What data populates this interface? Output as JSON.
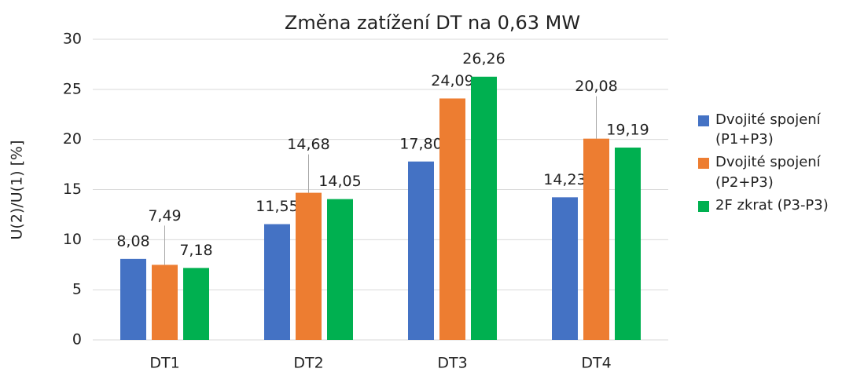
{
  "chart_data": {
    "type": "bar",
    "title": "Změna zatížení DT na 0,63 MW",
    "y_label": "U(2)/U(1) [%]",
    "categories": [
      "DT1",
      "DT2",
      "DT3",
      "DT4"
    ],
    "series": [
      {
        "name": "Dvojité spojení (P1+P3)",
        "color": "#4472c4",
        "values": [
          8.08,
          11.55,
          17.8,
          14.23
        ],
        "value_labels": [
          "8,08",
          "11,55",
          "17,80",
          "14,23"
        ]
      },
      {
        "name": "Dvojité spojení (P2+P3)",
        "color": "#ed7d31",
        "values": [
          7.49,
          14.68,
          24.09,
          20.08
        ],
        "value_labels": [
          "7,49",
          "14,68",
          "24,09",
          "20,08"
        ]
      },
      {
        "name": "2F zkrat (P3-P3)",
        "color": "#00b050",
        "values": [
          7.18,
          14.05,
          26.26,
          19.19
        ],
        "value_labels": [
          "7,18",
          "14,05",
          "26,26",
          "19,19"
        ]
      }
    ],
    "ylim": [
      0,
      30
    ],
    "yticks": [
      0,
      5,
      10,
      15,
      20,
      25,
      30
    ],
    "grid": true,
    "legend": "right"
  }
}
